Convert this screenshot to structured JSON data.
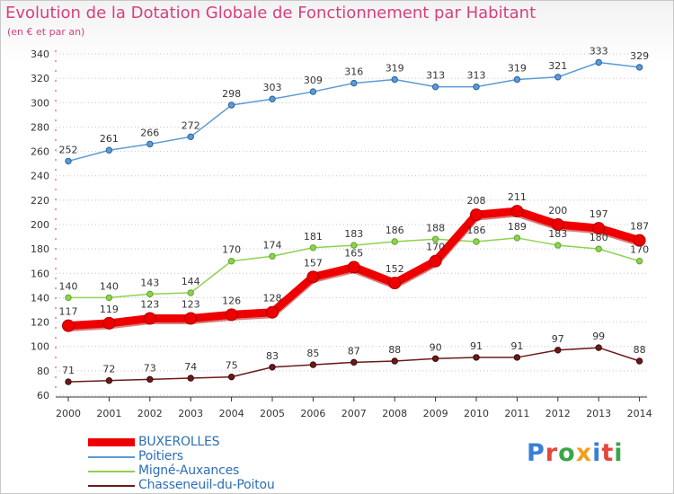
{
  "title": "Evolution de la Dotation Globale de Fonctionnement par Habitant",
  "subtitle": "(en € et par an)",
  "logo": {
    "letters": [
      "P",
      "r",
      "o",
      "x",
      "i",
      "t",
      "i"
    ],
    "colors": [
      "#3a7fd5",
      "#e6463c",
      "#3aa64a",
      "#f0a020",
      "#3a7fd5",
      "#e6463c",
      "#3aa64a"
    ]
  },
  "chart_data": {
    "type": "line",
    "title": "Evolution de la Dotation Globale de Fonctionnement par Habitant",
    "xlabel": "",
    "ylabel": "(en € et par an)",
    "x": [
      "2000",
      "2001",
      "2002",
      "2003",
      "2004",
      "2005",
      "2006",
      "2007",
      "2008",
      "2009",
      "2010",
      "2011",
      "2012",
      "2013",
      "2014"
    ],
    "ylim": [
      60,
      340
    ],
    "yticks": [
      60,
      80,
      100,
      120,
      140,
      160,
      180,
      200,
      220,
      240,
      260,
      280,
      300,
      320,
      340
    ],
    "grid": "horizontal dotted",
    "legend": "bottom-left",
    "series": [
      {
        "name": "BUXEROLLES",
        "color": "#ee0000",
        "values": [
          117,
          119,
          123,
          123,
          126,
          128,
          157,
          165,
          152,
          170,
          208,
          211,
          200,
          197,
          187
        ]
      },
      {
        "name": "Poitiers",
        "color": "#5a9bd5",
        "values": [
          252,
          261,
          266,
          272,
          298,
          303,
          309,
          316,
          319,
          313,
          313,
          319,
          321,
          333,
          329
        ]
      },
      {
        "name": "Migné-Auxances",
        "color": "#8fd14f",
        "values": [
          140,
          140,
          143,
          144,
          170,
          174,
          181,
          183,
          186,
          188,
          186,
          189,
          183,
          180,
          170
        ]
      },
      {
        "name": "Chasseneuil-du-Poitou",
        "color": "#6b1a1a",
        "values": [
          71,
          72,
          73,
          74,
          75,
          83,
          85,
          87,
          88,
          90,
          91,
          91,
          97,
          99,
          88
        ]
      }
    ]
  }
}
